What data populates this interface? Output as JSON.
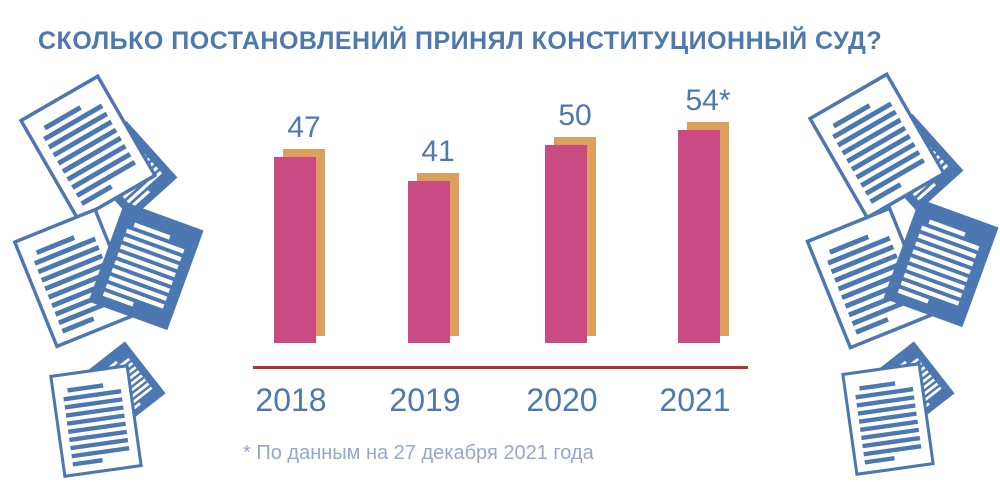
{
  "header": {
    "title": "СКОЛЬКО ПОСТАНОВЛЕНИЙ ПРИНЯЛ КОНСТИТУЦИОННЫЙ СУД?"
  },
  "chart_data": {
    "type": "bar",
    "title": "СКОЛЬКО ПОСТАНОВЛЕНИЙ ПРИНЯЛ КОНСТИТУЦИОННЫЙ СУД?",
    "categories": [
      "2018",
      "2019",
      "2020",
      "2021"
    ],
    "values": [
      47,
      41,
      50,
      54
    ],
    "bar_labels": [
      "47",
      "41",
      "50",
      "54*"
    ],
    "footnote": "* По данным на 27 декабря 2021 года",
    "xlabel": "",
    "ylabel": "",
    "grid": false,
    "legend": null,
    "baseline_axis": true
  },
  "colors": {
    "background": "#ffffff",
    "accent_blue": "#4d79ae",
    "bar_pink": "#ca4b84",
    "bar_shadow_orange": "#dda05c",
    "axis_red": "#b03137",
    "footnote_blue": "#93a8ca",
    "icon_blue": "#4c77b0"
  },
  "icons": {
    "decoration_left_top": "document-stack-icon",
    "decoration_left_middle": "document-stack-icon",
    "decoration_left_bottom": "document-stack-icon",
    "decoration_right_top": "document-stack-icon",
    "decoration_right_middle": "document-stack-icon",
    "decoration_right_bottom": "document-stack-icon"
  }
}
